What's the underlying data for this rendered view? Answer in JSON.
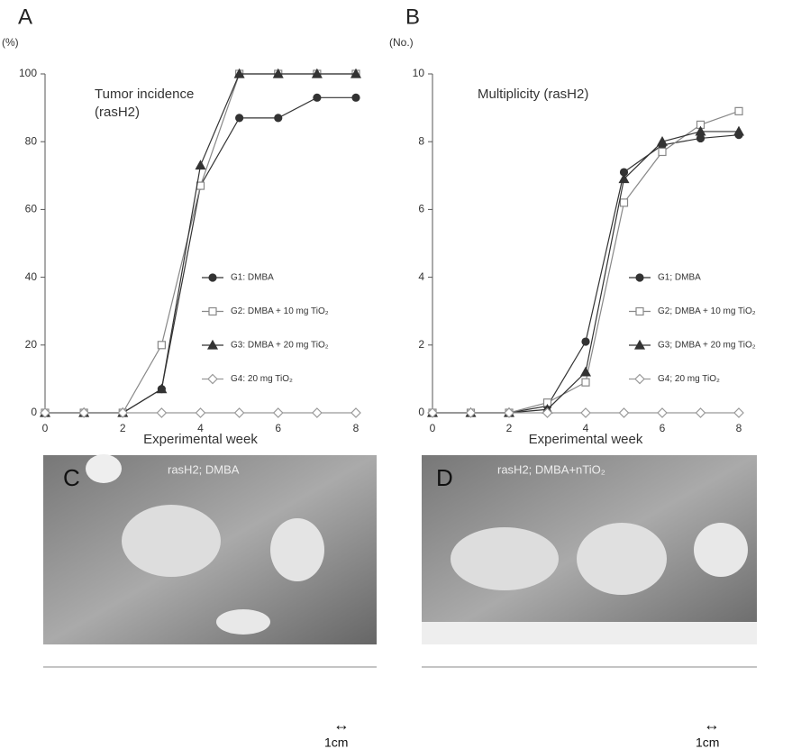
{
  "chart_data": [
    {
      "type": "line",
      "panel": "A",
      "y_unit": "(%)",
      "title": [
        "Tumor incidence",
        "(rasH2)"
      ],
      "x_label": "Experimental week",
      "x": [
        0,
        1,
        2,
        3,
        4,
        5,
        6,
        7,
        8
      ],
      "xlim": [
        0,
        8
      ],
      "xticks": [
        0,
        2,
        4,
        6,
        8
      ],
      "ylim": [
        0,
        100
      ],
      "yticks": [
        0,
        20,
        40,
        60,
        80,
        100
      ],
      "series": [
        {
          "name": "G1: DMBA",
          "color": "#333333",
          "marker": "circle",
          "values": [
            0,
            0,
            0,
            7,
            67,
            87,
            87,
            93,
            93
          ]
        },
        {
          "name": "G2: DMBA + 10 mg TiO₂",
          "color": "#888888",
          "marker": "square",
          "values": [
            0,
            0,
            0,
            20,
            67,
            100,
            100,
            100,
            100
          ]
        },
        {
          "name": "G3: DMBA + 20 mg TiO₂",
          "color": "#333333",
          "marker": "triangle",
          "values": [
            0,
            0,
            0,
            7,
            73,
            100,
            100,
            100,
            100
          ]
        },
        {
          "name": "G4: 20 mg TiO₂",
          "color": "#999999",
          "marker": "diamond",
          "values": [
            0,
            0,
            0,
            0,
            0,
            0,
            0,
            0,
            0
          ]
        }
      ]
    },
    {
      "type": "line",
      "panel": "B",
      "y_unit": "(No.)",
      "title": [
        "Multiplicity (rasH2)"
      ],
      "x_label": "Experimental week",
      "x": [
        0,
        1,
        2,
        3,
        4,
        5,
        6,
        7,
        8
      ],
      "xlim": [
        0,
        8
      ],
      "xticks": [
        0,
        2,
        4,
        6,
        8
      ],
      "ylim": [
        0,
        10
      ],
      "yticks": [
        0,
        2,
        4,
        6,
        8,
        10
      ],
      "series": [
        {
          "name": "G1; DMBA",
          "color": "#333333",
          "marker": "circle",
          "values": [
            0,
            0,
            0,
            0.2,
            2.1,
            7.1,
            7.9,
            8.1,
            8.2
          ]
        },
        {
          "name": "G2; DMBA + 10 mg TiO₂",
          "color": "#888888",
          "marker": "square",
          "values": [
            0,
            0,
            0,
            0.3,
            0.9,
            6.2,
            7.7,
            8.5,
            8.9
          ]
        },
        {
          "name": "G3; DMBA + 20 mg TiO₂",
          "color": "#333333",
          "marker": "triangle",
          "values": [
            0,
            0,
            0,
            0.1,
            1.2,
            6.9,
            8.0,
            8.3,
            8.3
          ]
        },
        {
          "name": "G4; 20 mg TiO₂",
          "color": "#999999",
          "marker": "diamond",
          "values": [
            0,
            0,
            0,
            0,
            0,
            0,
            0,
            0,
            0
          ]
        }
      ]
    }
  ],
  "photos": [
    {
      "panel": "C",
      "caption": "rasH2; DMBA",
      "scale": "1cm"
    },
    {
      "panel": "D",
      "caption": "rasH2; DMBA+nTiO₂",
      "scale": "1cm"
    }
  ]
}
